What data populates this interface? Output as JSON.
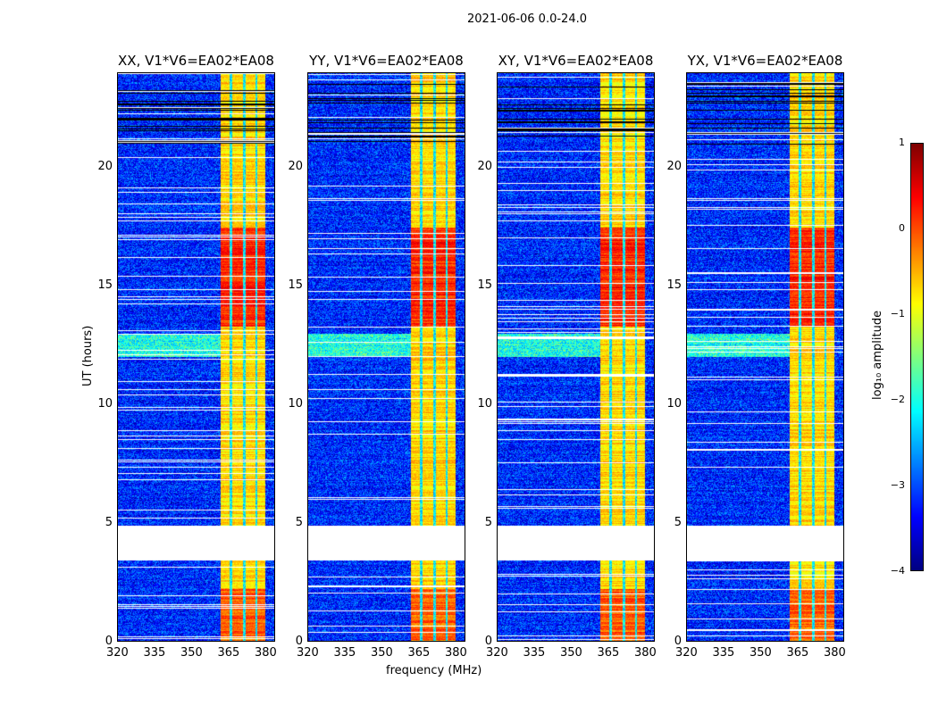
{
  "figure": {
    "suptitle": "2021-06-06 0.0-24.0",
    "xlabel": "frequency (MHz)",
    "ylabel": "UT (hours)",
    "colorbar_label": "log₁₀ amplitude"
  },
  "chart_data": {
    "type": "heatmap",
    "panels": [
      {
        "title": "XX, V1*V6=EA02*EA08"
      },
      {
        "title": "YY, V1*V6=EA02*EA08"
      },
      {
        "title": "XY, V1*V6=EA02*EA08"
      },
      {
        "title": "YX, V1*V6=EA02*EA08"
      }
    ],
    "x_range_mhz": [
      320,
      384
    ],
    "y_range_hours": [
      0,
      24
    ],
    "x_ticks": [
      "320",
      "335",
      "350",
      "365",
      "380"
    ],
    "x_tick_values": [
      320,
      335,
      350,
      365,
      380
    ],
    "y_ticks": [
      "0",
      "5",
      "10",
      "15",
      "20"
    ],
    "y_tick_values": [
      0,
      5,
      10,
      15,
      20
    ],
    "colorbar": {
      "range": [
        -4,
        1
      ],
      "ticks": [
        "−4",
        "−3",
        "−2",
        "−1",
        "0",
        "1"
      ],
      "tick_values": [
        -4,
        -3,
        -2,
        -1,
        0,
        1
      ],
      "colormap": "jet"
    },
    "flagged_hours": [
      3.4,
      4.9
    ],
    "bright_band_mhz": [
      362,
      380
    ],
    "background_log_amplitude": -3.2,
    "band_log_amplitude": -0.7,
    "high_activity_hours": [
      13.3,
      17.5
    ]
  }
}
